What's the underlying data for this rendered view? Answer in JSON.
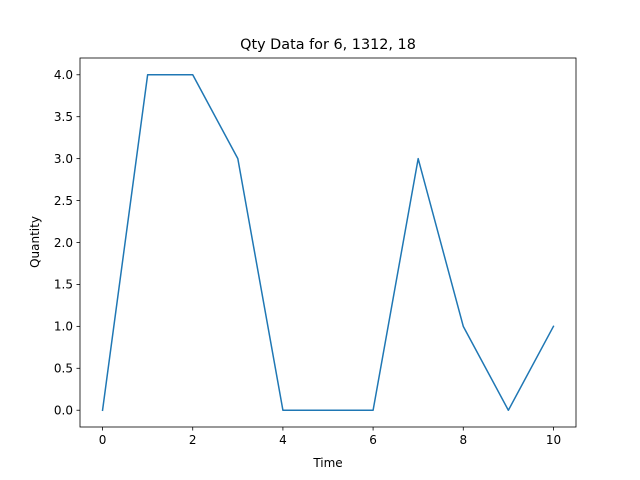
{
  "chart_data": {
    "type": "line",
    "title": "Qty Data for 6, 1312, 18",
    "xlabel": "Time",
    "ylabel": "Quantity",
    "xlim": [
      -0.5,
      10.5
    ],
    "ylim": [
      -0.2,
      4.2
    ],
    "x_ticks": [
      0,
      2,
      4,
      6,
      8,
      10
    ],
    "x_tick_labels": [
      "0",
      "2",
      "4",
      "6",
      "8",
      "10"
    ],
    "y_ticks": [
      0,
      0.5,
      1,
      1.5,
      2,
      2.5,
      3,
      3.5,
      4
    ],
    "y_tick_labels": [
      "0.0",
      "0.5",
      "1.0",
      "1.5",
      "2.0",
      "2.5",
      "3.0",
      "3.5",
      "4.0"
    ],
    "grid": false,
    "series": [
      {
        "color": "#1f77b4",
        "x": [
          0,
          1,
          2,
          3,
          4,
          5,
          6,
          7,
          8,
          9,
          10
        ],
        "y": [
          0,
          4,
          4,
          3,
          0,
          0,
          0,
          3,
          1,
          0,
          1
        ]
      }
    ]
  }
}
